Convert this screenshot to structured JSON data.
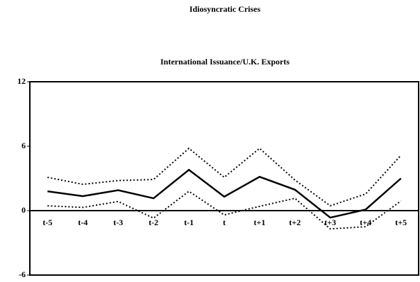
{
  "chart_data": {
    "type": "line",
    "suptitle": "Idiosyncratic Crises",
    "title": "International  Issuance/U.K. Exports",
    "categories": [
      "t-5",
      "t-4",
      "t-3",
      "t-2",
      "t-1",
      "t",
      "t+1",
      "t+2",
      "t+3",
      "t+4",
      "t+5"
    ],
    "series": [
      {
        "color": "#000000",
        "dash": "solid",
        "values": [
          1.8,
          1.35,
          1.9,
          1.15,
          3.8,
          1.3,
          3.15,
          1.95,
          -0.65,
          0.1,
          3.0
        ]
      },
      {
        "color": "#000000",
        "dash": "dotted",
        "values": [
          3.1,
          2.45,
          2.8,
          2.9,
          5.8,
          3.1,
          5.8,
          2.85,
          0.45,
          1.55,
          5.15
        ]
      },
      {
        "color": "#000000",
        "dash": "dotted",
        "values": [
          0.45,
          0.3,
          0.85,
          -0.7,
          1.8,
          -0.4,
          0.4,
          1.15,
          -1.7,
          -1.5,
          0.9
        ]
      }
    ],
    "ylim": [
      -6,
      12
    ],
    "yticks": [
      -6,
      0,
      6,
      12
    ],
    "grid": false
  }
}
